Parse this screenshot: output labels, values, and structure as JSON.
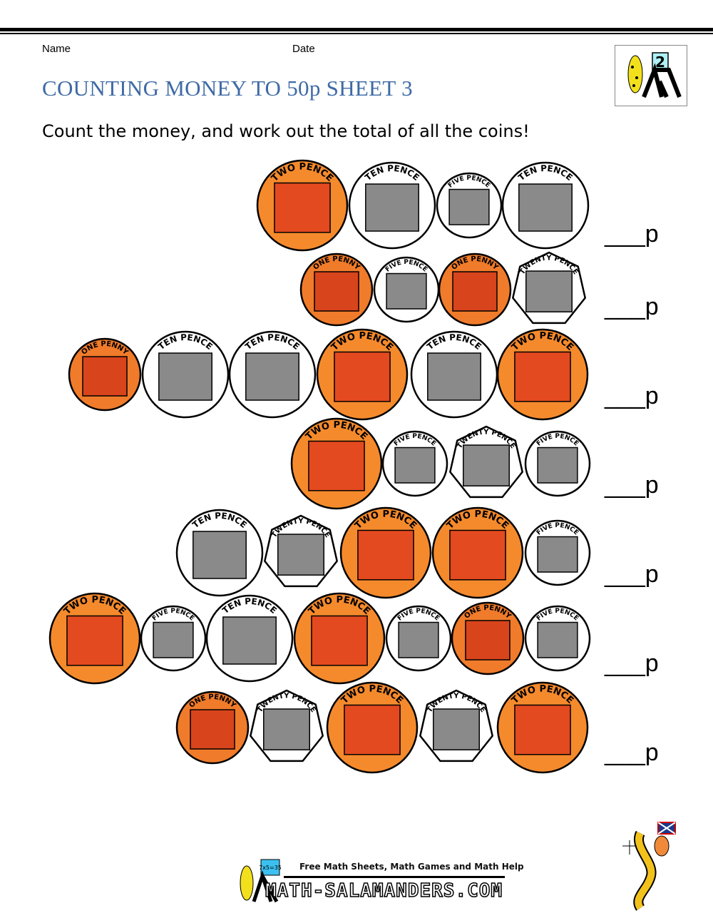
{
  "header": {
    "name_label": "Name",
    "date_label": "Date",
    "title": "COUNTING MONEY TO 50p SHEET 3",
    "instruction": "Count the money, and work out the total of all the coins!",
    "logo_badge": "2"
  },
  "coin_types": {
    "1p": {
      "label": "ONE PENNY",
      "fill": "#f07b2a",
      "inner": "#d8441c"
    },
    "2p": {
      "label": "TWO PENCE",
      "fill": "#f58a2c",
      "inner": "#e44a1f"
    },
    "5p": {
      "label": "FIVE PENCE",
      "fill": "#ffffff",
      "inner": "#8a8a8a"
    },
    "10p": {
      "label": "TEN PENCE",
      "fill": "#ffffff",
      "inner": "#8a8a8a"
    },
    "20p": {
      "label": "TWENTY PENCE",
      "fill": "#ffffff",
      "inner": "#8a8a8a"
    }
  },
  "rows": [
    {
      "coins": [
        "2p",
        "10p",
        "5p",
        "10p"
      ],
      "answer": "___p"
    },
    {
      "coins": [
        "1p",
        "5p",
        "1p",
        "20p"
      ],
      "answer": "___p"
    },
    {
      "coins": [
        "1p",
        "10p",
        "10p",
        "2p",
        "10p",
        "2p"
      ],
      "answer": "___p"
    },
    {
      "coins": [
        "2p",
        "5p",
        "20p",
        "5p"
      ],
      "answer": "___p"
    },
    {
      "coins": [
        "10p",
        "20p",
        "2p",
        "2p",
        "5p"
      ],
      "answer": "___p"
    },
    {
      "coins": [
        "2p",
        "5p",
        "10p",
        "2p",
        "5p",
        "1p",
        "5p"
      ],
      "answer": "___p"
    },
    {
      "coins": [
        "1p",
        "20p",
        "2p",
        "20p",
        "2p"
      ],
      "answer": "___p"
    }
  ],
  "footer": {
    "tagline": "Free Math Sheets, Math Games and Math Help",
    "site": "MATH-SALAMANDERS.COM",
    "logo_board": "7x5=35"
  }
}
